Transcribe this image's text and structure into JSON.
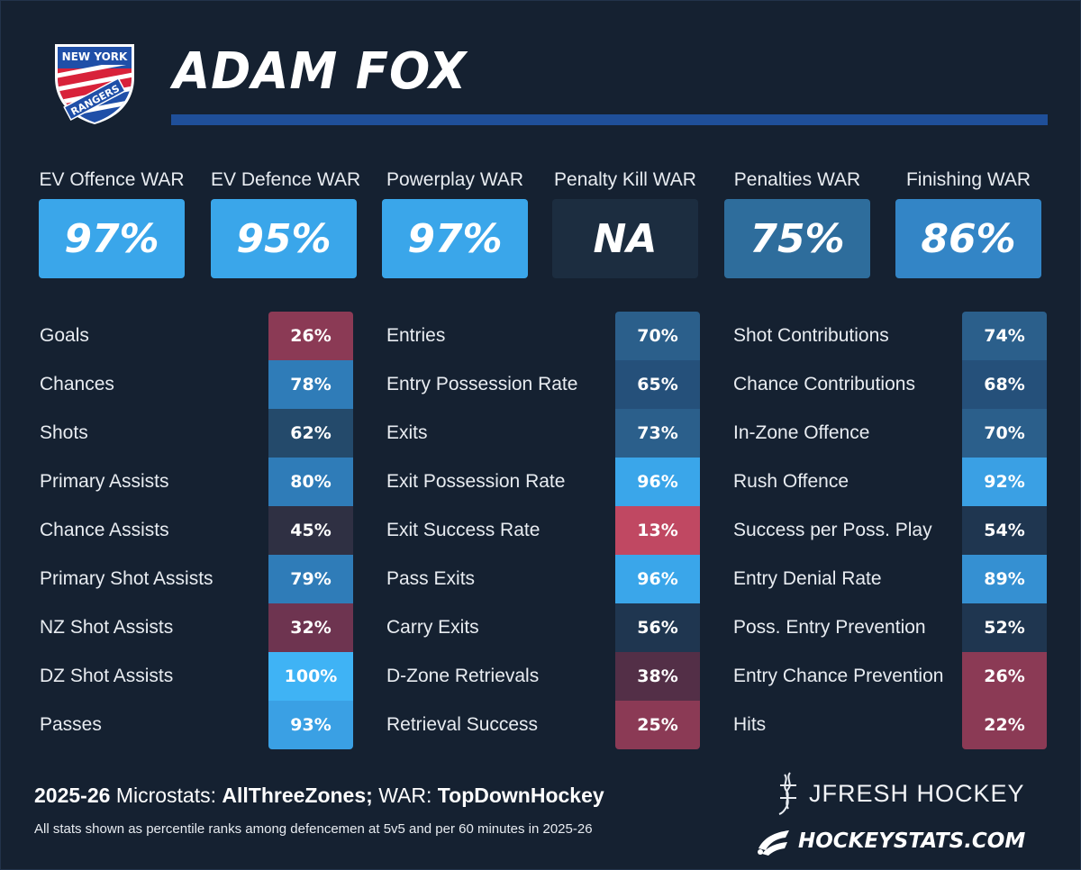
{
  "header": {
    "team_logo_text": [
      "NEW YORK",
      "RANGERS"
    ],
    "player_name": "ADAM FOX"
  },
  "war": [
    {
      "label": "EV Offence WAR",
      "value": "97%",
      "color": "#3aa6ea"
    },
    {
      "label": "EV Defence WAR",
      "value": "95%",
      "color": "#3aa6ea"
    },
    {
      "label": "Powerplay WAR",
      "value": "97%",
      "color": "#3aa6ea"
    },
    {
      "label": "Penalty Kill WAR",
      "value": "NA",
      "color": "#1c2d40"
    },
    {
      "label": "Penalties WAR",
      "value": "75%",
      "color": "#2e6d9c"
    },
    {
      "label": "Finishing WAR",
      "value": "86%",
      "color": "#3385c6"
    }
  ],
  "microstats": [
    [
      {
        "label": "Goals",
        "value": "26%",
        "color": "#8b3a55"
      },
      {
        "label": "Chances",
        "value": "78%",
        "color": "#2f7cb8"
      },
      {
        "label": "Shots",
        "value": "62%",
        "color": "#244a6b"
      },
      {
        "label": "Primary Assists",
        "value": "80%",
        "color": "#2f7cb8"
      },
      {
        "label": "Chance Assists",
        "value": "45%",
        "color": "#2f3043"
      },
      {
        "label": "Primary Shot Assists",
        "value": "79%",
        "color": "#2f7cb8"
      },
      {
        "label": "NZ Shot Assists",
        "value": "32%",
        "color": "#6e3450"
      },
      {
        "label": "DZ Shot Assists",
        "value": "100%",
        "color": "#3fb3f5"
      },
      {
        "label": "Passes",
        "value": "93%",
        "color": "#3aa0e4"
      }
    ],
    [
      {
        "label": "Entries",
        "value": "70%",
        "color": "#2b5f8b"
      },
      {
        "label": "Entry Possession Rate",
        "value": "65%",
        "color": "#25507a"
      },
      {
        "label": "Exits",
        "value": "73%",
        "color": "#2b5f8b"
      },
      {
        "label": "Exit Possession Rate",
        "value": "96%",
        "color": "#3aa6ea"
      },
      {
        "label": "Exit Success Rate",
        "value": "13%",
        "color": "#c04862"
      },
      {
        "label": "Pass Exits",
        "value": "96%",
        "color": "#3aa6ea"
      },
      {
        "label": "Carry Exits",
        "value": "56%",
        "color": "#1f3650"
      },
      {
        "label": "D-Zone Retrievals",
        "value": "38%",
        "color": "#532f47"
      },
      {
        "label": "Retrieval Success",
        "value": "25%",
        "color": "#8b3a55"
      }
    ],
    [
      {
        "label": "Shot Contributions",
        "value": "74%",
        "color": "#2b5f8b"
      },
      {
        "label": "Chance Contributions",
        "value": "68%",
        "color": "#25507a"
      },
      {
        "label": "In-Zone Offence",
        "value": "70%",
        "color": "#2b5f8b"
      },
      {
        "label": "Rush Offence",
        "value": "92%",
        "color": "#3aa0e4"
      },
      {
        "label": "Success per Poss. Play",
        "value": "54%",
        "color": "#1f3650"
      },
      {
        "label": "Entry Denial Rate",
        "value": "89%",
        "color": "#3590d2"
      },
      {
        "label": "Poss. Entry Prevention",
        "value": "52%",
        "color": "#1f3650"
      },
      {
        "label": "Entry Chance Prevention",
        "value": "26%",
        "color": "#8b3a55"
      },
      {
        "label": "Hits",
        "value": "22%",
        "color": "#8b3a55"
      }
    ]
  ],
  "footer": {
    "season": "2025-26",
    "microstats_label": "Microstats:",
    "microstats_source": "AllThreeZones;",
    "war_label": "WAR:",
    "war_source": "TopDownHockey",
    "footnote": "All stats shown as percentile ranks among defencemen at 5v5 and per 60 minutes in 2025-26",
    "brand1": "JFRESH HOCKEY",
    "brand2": "HOCKEYSTATS.COM"
  }
}
